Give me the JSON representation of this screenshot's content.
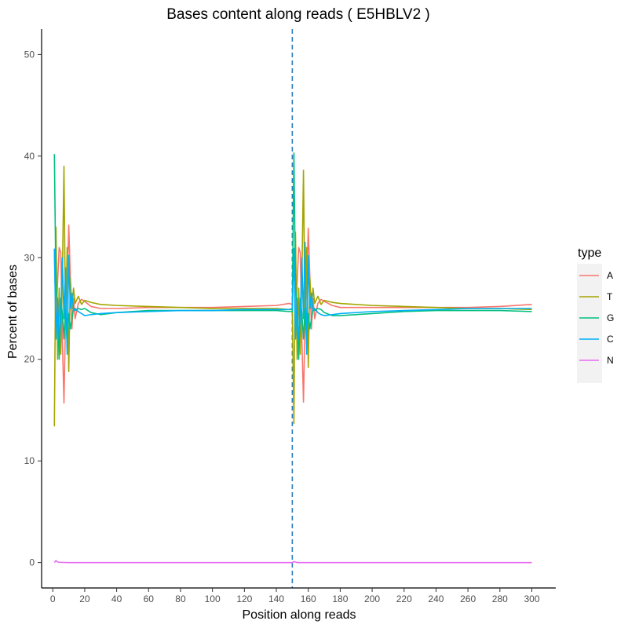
{
  "chart_data": {
    "type": "line",
    "title": "Bases content along reads ( E5HBLV2 )",
    "xlabel": "Position along reads",
    "ylabel": "Percent of bases",
    "xlim": [
      -7,
      315
    ],
    "ylim": [
      -2.5,
      52.5
    ],
    "xticks": [
      0,
      20,
      40,
      60,
      80,
      100,
      120,
      140,
      160,
      180,
      200,
      220,
      240,
      260,
      280,
      300
    ],
    "yticks": [
      0,
      10,
      20,
      30,
      40,
      50
    ],
    "grid": false,
    "legend": {
      "title": "type",
      "placement": "right"
    },
    "reference_line": {
      "x": 150,
      "style": "dashed",
      "color": "#2b7bba"
    },
    "series": [
      {
        "name": "A",
        "color": "#F8766D",
        "x": [
          1,
          2,
          3,
          4,
          5,
          6,
          7,
          8,
          9,
          10,
          11,
          12,
          13,
          14,
          16,
          18,
          20,
          24,
          30,
          40,
          60,
          80,
          100,
          120,
          140,
          148,
          150,
          151,
          152,
          153,
          154,
          155,
          156,
          157,
          158,
          159,
          160,
          161,
          162,
          163,
          164,
          166,
          168,
          170,
          175,
          180,
          200,
          220,
          240,
          260,
          280,
          300
        ],
        "y": [
          30.5,
          24.0,
          27.5,
          31.0,
          30.5,
          22.0,
          15.7,
          24.0,
          27.0,
          33.2,
          28.0,
          23.0,
          26.0,
          24.0,
          25.5,
          25.9,
          25.7,
          25.2,
          25.0,
          25.0,
          25.1,
          25.1,
          25.1,
          25.2,
          25.3,
          25.5,
          25.4,
          30.5,
          24.0,
          27.5,
          31.0,
          30.5,
          22.0,
          15.8,
          24.0,
          27.0,
          32.9,
          28.0,
          23.0,
          26.0,
          24.0,
          25.5,
          25.9,
          25.7,
          25.3,
          25.1,
          25.1,
          25.1,
          25.1,
          25.1,
          25.2,
          25.4
        ]
      },
      {
        "name": "T",
        "color": "#A3A500",
        "x": [
          1,
          2,
          3,
          4,
          5,
          6,
          7,
          8,
          9,
          10,
          11,
          12,
          13,
          14,
          16,
          18,
          20,
          24,
          30,
          40,
          60,
          80,
          100,
          120,
          140,
          148,
          150,
          151,
          152,
          153,
          154,
          155,
          156,
          157,
          158,
          159,
          160,
          161,
          162,
          163,
          164,
          166,
          168,
          170,
          175,
          180,
          200,
          220,
          240,
          260,
          280,
          300
        ],
        "y": [
          13.4,
          33.0,
          20.0,
          27.0,
          20.5,
          28.0,
          39.0,
          23.0,
          31.0,
          18.8,
          28.0,
          25.0,
          27.0,
          25.5,
          26.2,
          25.4,
          25.8,
          25.6,
          25.4,
          25.3,
          25.2,
          25.1,
          25.0,
          25.0,
          25.0,
          24.9,
          24.9,
          13.7,
          32.5,
          20.0,
          27.0,
          20.5,
          28.0,
          38.6,
          23.0,
          31.0,
          19.2,
          28.0,
          25.0,
          27.0,
          25.5,
          26.2,
          25.4,
          25.8,
          25.6,
          25.5,
          25.3,
          25.2,
          25.1,
          25.0,
          25.0,
          24.9
        ]
      },
      {
        "name": "G",
        "color": "#00BF7D",
        "x": [
          1,
          2,
          3,
          4,
          5,
          6,
          7,
          8,
          9,
          10,
          11,
          12,
          13,
          14,
          16,
          18,
          20,
          24,
          30,
          40,
          60,
          80,
          100,
          120,
          140,
          148,
          150,
          151,
          152,
          153,
          154,
          155,
          156,
          157,
          158,
          159,
          160,
          161,
          162,
          163,
          164,
          166,
          168,
          170,
          175,
          180,
          200,
          220,
          240,
          260,
          280,
          300
        ],
        "y": [
          40.2,
          27.0,
          25.5,
          20.0,
          26.0,
          24.5,
          22.0,
          25.0,
          21.5,
          24.5,
          23.0,
          24.0,
          25.0,
          24.8,
          25.0,
          24.9,
          25.0,
          24.6,
          24.4,
          24.6,
          24.8,
          24.8,
          24.8,
          24.8,
          24.8,
          24.7,
          24.7,
          40.3,
          27.0,
          25.5,
          20.0,
          26.0,
          24.5,
          22.0,
          25.0,
          21.5,
          24.5,
          23.0,
          24.0,
          25.0,
          24.8,
          25.0,
          24.9,
          24.6,
          24.3,
          24.3,
          24.5,
          24.7,
          24.8,
          24.8,
          24.8,
          24.7
        ]
      },
      {
        "name": "C",
        "color": "#00B0F6",
        "x": [
          1,
          2,
          3,
          4,
          5,
          6,
          7,
          8,
          9,
          10,
          11,
          12,
          13,
          14,
          16,
          18,
          20,
          24,
          30,
          40,
          60,
          80,
          100,
          120,
          140,
          148,
          150,
          151,
          152,
          153,
          154,
          155,
          156,
          157,
          158,
          159,
          160,
          161,
          162,
          163,
          164,
          166,
          168,
          170,
          175,
          180,
          200,
          220,
          240,
          260,
          280,
          300
        ],
        "y": [
          30.9,
          22.0,
          26.0,
          22.0,
          24.0,
          30.0,
          24.0,
          29.0,
          20.5,
          30.2,
          25.0,
          26.5,
          24.8,
          25.0,
          24.7,
          24.5,
          24.3,
          24.4,
          24.5,
          24.6,
          24.7,
          24.8,
          24.8,
          24.9,
          24.9,
          24.9,
          25.0,
          30.9,
          22.0,
          26.0,
          22.0,
          24.0,
          30.0,
          24.0,
          31.5,
          20.5,
          30.2,
          25.0,
          26.5,
          24.8,
          25.0,
          24.6,
          24.4,
          24.3,
          24.4,
          24.5,
          24.7,
          24.8,
          24.9,
          25.0,
          25.0,
          25.0
        ]
      },
      {
        "name": "N",
        "color": "#E76BF3",
        "x": [
          1,
          2,
          3,
          5,
          10,
          20,
          60,
          100,
          140,
          150,
          151,
          152,
          153,
          160,
          200,
          240,
          280,
          300
        ],
        "y": [
          0.0,
          0.2,
          0.05,
          0.02,
          0.0,
          0.0,
          0.0,
          0.0,
          0.0,
          0.0,
          0.1,
          0.05,
          0.0,
          0.0,
          0.0,
          0.0,
          0.0,
          0.0
        ]
      }
    ]
  }
}
